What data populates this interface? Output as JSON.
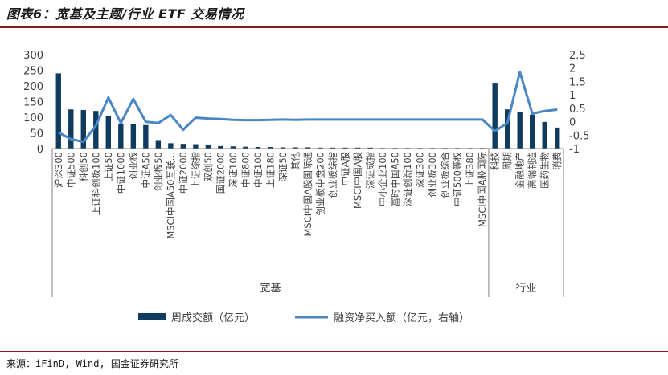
{
  "title": "图表6：宽基及主题/行业 ETF 交易情况",
  "source": "来源：iFinD, Wind, 国金证券研究所",
  "colors": {
    "bar": "#0f3b5f",
    "line": "#4a86c5",
    "axis": "#808080",
    "text": "#404040",
    "accent": "#8b1a1a"
  },
  "chart_data": {
    "type": "bar",
    "categories": [
      "沪深300",
      "中证500",
      "科创50",
      "上证科创板100",
      "上证50",
      "中证1000",
      "创业板",
      "中证A50",
      "创业板50",
      "MSCI中国A50互联…",
      "中证2000",
      "上证综指",
      "双创50",
      "国证2000",
      "深证100",
      "中证800",
      "中证100",
      "上证180",
      "深证50",
      "其他",
      "MSCI中国A股国际通",
      "创业板中盘200",
      "创业板综指",
      "中证A股",
      "MSCI中国A股",
      "深证成指",
      "中小企业100",
      "富时中国A50",
      "深证创新100",
      "深证300",
      "创业板300",
      "创业板综合",
      "中证500等权",
      "上证380",
      "MSCI中国A股国际",
      "科技",
      "周期",
      "金融地产",
      "高端制造",
      "医药生物",
      "消费"
    ],
    "series": [
      {
        "name": "周成交额（亿元）",
        "kind": "bar",
        "axis": "left",
        "values": [
          240,
          125,
          123,
          120,
          105,
          80,
          78,
          75,
          27,
          17,
          15,
          14,
          13,
          8,
          7,
          6,
          5,
          5,
          4,
          4,
          4,
          3,
          3,
          3,
          3,
          3,
          2,
          2,
          2,
          2,
          2,
          2,
          2,
          2,
          2,
          210,
          125,
          118,
          108,
          85,
          67
        ]
      },
      {
        "name": "融资净买入额（亿元，右轴）",
        "kind": "line",
        "axis": "right",
        "values": [
          -0.4,
          -0.65,
          -0.75,
          -0.15,
          0.9,
          -0.05,
          0.85,
          0.0,
          -0.05,
          0.25,
          -0.3,
          0.15,
          0.12,
          0.1,
          0.07,
          0.06,
          0.06,
          0.07,
          0.08,
          0.07,
          0.08,
          0.08,
          0.08,
          0.08,
          0.08,
          0.08,
          0.08,
          0.08,
          0.08,
          0.08,
          0.08,
          0.08,
          0.08,
          0.08,
          0.08,
          -0.35,
          -0.05,
          1.85,
          0.3,
          0.4,
          0.45
        ]
      }
    ],
    "groups": [
      {
        "label": "宽基",
        "start": 0,
        "end": 34
      },
      {
        "label": "行业",
        "start": 35,
        "end": 40
      }
    ],
    "y_left": {
      "ticks": [
        "0",
        "50",
        "100",
        "150",
        "200",
        "250",
        "300"
      ],
      "range": [
        0,
        300
      ]
    },
    "y_right": {
      "ticks": [
        "-1",
        "-0.5",
        "0",
        "0.5",
        "1",
        "1.5",
        "2",
        "2.5"
      ],
      "range": [
        -1,
        2.5
      ]
    },
    "legend": {
      "placement": "bottom",
      "bar_label": "周成交额（亿元）",
      "line_label": "融资净买入额（亿元，右轴）"
    },
    "grid": false
  }
}
